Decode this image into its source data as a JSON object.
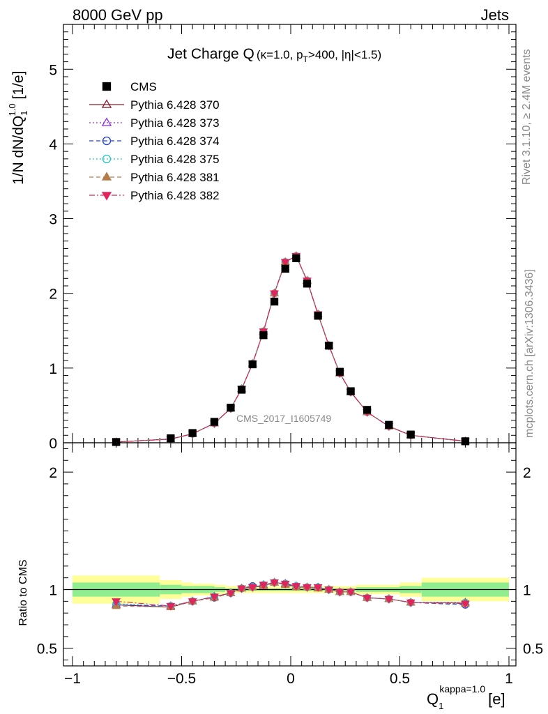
{
  "header": {
    "left": "8000 GeV pp",
    "right": "Jets"
  },
  "side_labels": {
    "rivet": "Rivet 3.1.10, ≥ 2.4M events",
    "mcplots": "mcplots.cern.ch [arXiv:1306.3436]"
  },
  "analysis_id": "CMS_2017_I1605749",
  "chart_data": [
    {
      "type": "line",
      "title": {
        "main": "Jet Charge Q",
        "kappa": "κ=1.0, p",
        "pt_sub": "T",
        "cuts": ">400, |η|<1.5)",
        "open": "("
      },
      "ylabel": {
        "main": "1/N dN/dQ",
        "sub": "1",
        "sup": "1.0",
        "unit": "[1/e]"
      },
      "xlim": [
        -1,
        1
      ],
      "ylim": [
        0,
        5.6
      ],
      "yticks": [
        0,
        1,
        2,
        3,
        4,
        5
      ],
      "ytick_labels": [
        "0",
        "1",
        "2",
        "3",
        "4",
        "5"
      ],
      "legend_position": "top-left",
      "x": [
        -0.8,
        -0.55,
        -0.45,
        -0.35,
        -0.275,
        -0.225,
        -0.175,
        -0.125,
        -0.075,
        -0.025,
        0.025,
        0.075,
        0.125,
        0.175,
        0.225,
        0.275,
        0.35,
        0.45,
        0.55,
        0.8
      ],
      "series": [
        {
          "name": "CMS",
          "color": "#000000",
          "marker": "filled-square",
          "line": "none",
          "values": [
            0.01,
            0.06,
            0.13,
            0.28,
            0.47,
            0.71,
            1.05,
            1.44,
            1.89,
            2.33,
            2.47,
            2.13,
            1.7,
            1.3,
            0.95,
            0.69,
            0.44,
            0.24,
            0.11,
            0.02
          ]
        },
        {
          "name": "Pythia 6.428 370",
          "color": "#8b1a2b",
          "marker": "open-triangle-up",
          "line": "solid",
          "values": [
            0.01,
            0.05,
            0.12,
            0.26,
            0.46,
            0.72,
            1.06,
            1.49,
            2.0,
            2.42,
            2.5,
            2.17,
            1.72,
            1.3,
            0.93,
            0.68,
            0.41,
            0.22,
            0.1,
            0.02
          ]
        },
        {
          "name": "Pythia 6.428 373",
          "color": "#8b2be2",
          "marker": "open-triangle-up",
          "line": "dotted",
          "values": [
            0.01,
            0.05,
            0.12,
            0.26,
            0.46,
            0.72,
            1.06,
            1.49,
            2.0,
            2.42,
            2.5,
            2.17,
            1.72,
            1.3,
            0.93,
            0.68,
            0.41,
            0.22,
            0.1,
            0.02
          ]
        },
        {
          "name": "Pythia 6.428 374",
          "color": "#1f3fe0",
          "marker": "open-circle",
          "line": "dashed",
          "values": [
            0.01,
            0.05,
            0.12,
            0.26,
            0.46,
            0.72,
            1.06,
            1.49,
            2.0,
            2.42,
            2.5,
            2.17,
            1.72,
            1.3,
            0.93,
            0.68,
            0.41,
            0.22,
            0.1,
            0.02
          ]
        },
        {
          "name": "Pythia 6.428 375",
          "color": "#20c8c0",
          "marker": "open-circle",
          "line": "dotted",
          "values": [
            0.01,
            0.05,
            0.12,
            0.26,
            0.46,
            0.72,
            1.06,
            1.49,
            2.0,
            2.42,
            2.5,
            2.17,
            1.72,
            1.3,
            0.93,
            0.68,
            0.41,
            0.22,
            0.1,
            0.02
          ]
        },
        {
          "name": "Pythia 6.428 381",
          "color": "#b57c4a",
          "marker": "filled-triangle-up",
          "line": "dashed",
          "values": [
            0.01,
            0.05,
            0.12,
            0.26,
            0.46,
            0.72,
            1.06,
            1.49,
            2.0,
            2.42,
            2.5,
            2.17,
            1.72,
            1.3,
            0.93,
            0.68,
            0.41,
            0.22,
            0.1,
            0.02
          ]
        },
        {
          "name": "Pythia 6.428 382",
          "color": "#e0245e",
          "marker": "filled-triangle-down",
          "line": "dashdot",
          "values": [
            0.01,
            0.05,
            0.12,
            0.26,
            0.46,
            0.72,
            1.06,
            1.49,
            2.0,
            2.42,
            2.5,
            2.17,
            1.72,
            1.3,
            0.93,
            0.68,
            0.41,
            0.22,
            0.1,
            0.02
          ]
        }
      ]
    },
    {
      "type": "line",
      "ylabel": "Ratio to CMS",
      "xlabel": {
        "main": "Q",
        "sub": "1",
        "sup": "kappa=1.0",
        "unit": "[e]"
      },
      "xlim": [
        -1,
        1
      ],
      "ylim": [
        0.35,
        2.25
      ],
      "xticks": [
        -1,
        -0.5,
        0,
        0.5,
        1
      ],
      "xtick_labels": [
        "−1",
        "−0.5",
        "0",
        "0.5",
        "1"
      ],
      "yticks": [
        0.5,
        1,
        2
      ],
      "ytick_labels": [
        "0.5",
        "1",
        "2"
      ],
      "reference_line": 1,
      "bands": {
        "edges": [
          -1,
          -0.6,
          -0.5,
          -0.45,
          -0.35,
          -0.3,
          0.3,
          0.5,
          0.6,
          1
        ],
        "inner_lo": [
          0.94,
          0.96,
          0.97,
          0.97,
          0.98,
          0.99,
          0.98,
          0.97,
          0.94
        ],
        "inner_hi": [
          1.06,
          1.04,
          1.03,
          1.03,
          1.02,
          1.01,
          1.02,
          1.03,
          1.06
        ],
        "outer_lo": [
          0.88,
          0.92,
          0.94,
          0.95,
          0.96,
          0.97,
          0.96,
          0.94,
          0.9
        ],
        "outer_hi": [
          1.12,
          1.08,
          1.06,
          1.05,
          1.04,
          1.03,
          1.04,
          1.06,
          1.1
        ],
        "inner_color": "#90ee90",
        "outer_color": "#ffff99"
      },
      "x": [
        -0.8,
        -0.55,
        -0.45,
        -0.35,
        -0.275,
        -0.225,
        -0.175,
        -0.125,
        -0.075,
        -0.025,
        0.025,
        0.075,
        0.125,
        0.175,
        0.225,
        0.275,
        0.35,
        0.45,
        0.55,
        0.8
      ],
      "series": [
        {
          "name": "Pythia 6.428 370",
          "values": [
            0.87,
            0.85,
            0.9,
            0.94,
            0.97,
            1.01,
            1.02,
            1.03,
            1.06,
            1.05,
            1.02,
            1.02,
            1.01,
            1.0,
            0.98,
            0.98,
            0.93,
            0.92,
            0.89,
            0.89
          ]
        },
        {
          "name": "Pythia 6.428 373",
          "values": [
            0.87,
            0.86,
            0.9,
            0.94,
            0.97,
            1.01,
            1.02,
            1.04,
            1.06,
            1.05,
            1.03,
            1.02,
            1.02,
            1.0,
            0.98,
            0.98,
            0.93,
            0.92,
            0.89,
            0.89
          ]
        },
        {
          "name": "Pythia 6.428 374",
          "values": [
            0.87,
            0.86,
            0.9,
            0.93,
            0.97,
            1.01,
            1.03,
            1.04,
            1.06,
            1.05,
            1.03,
            1.02,
            1.02,
            1.0,
            0.98,
            0.98,
            0.93,
            0.92,
            0.89,
            0.87
          ]
        },
        {
          "name": "Pythia 6.428 375",
          "values": [
            0.88,
            0.86,
            0.9,
            0.94,
            0.97,
            1.01,
            1.02,
            1.04,
            1.06,
            1.05,
            1.03,
            1.02,
            1.02,
            1.0,
            0.98,
            0.98,
            0.93,
            0.92,
            0.89,
            0.89
          ]
        },
        {
          "name": "Pythia 6.428 381",
          "values": [
            0.86,
            0.85,
            0.9,
            0.93,
            0.97,
            1.01,
            1.02,
            1.03,
            1.06,
            1.04,
            1.02,
            1.02,
            1.01,
            1.0,
            0.98,
            0.98,
            0.93,
            0.92,
            0.89,
            0.88
          ]
        },
        {
          "name": "Pythia 6.428 382",
          "values": [
            0.9,
            0.86,
            0.9,
            0.94,
            0.97,
            1.01,
            1.02,
            1.04,
            1.06,
            1.05,
            1.03,
            1.02,
            1.02,
            1.0,
            0.98,
            0.98,
            0.93,
            0.92,
            0.89,
            0.88
          ]
        }
      ]
    }
  ]
}
